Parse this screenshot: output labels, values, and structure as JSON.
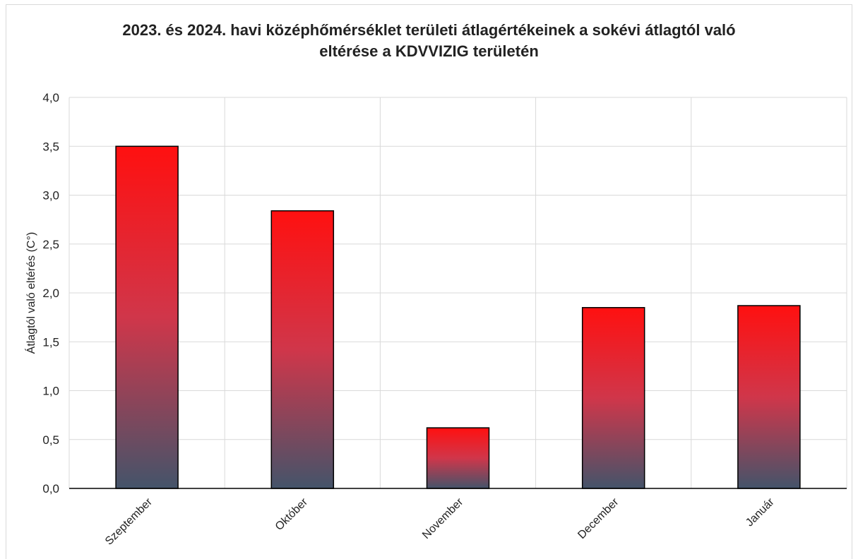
{
  "chart_data": {
    "type": "bar",
    "title_line1": "2023. és 2024. havi középhőmérséklet területi átlagértékeinek  a sokévi átlagtól való",
    "title_line2": "eltérése a KDVVIZIG területén",
    "xlabel": "",
    "ylabel": "Átlagtól való eltérés (C°)",
    "categories": [
      "Szeptember",
      "Október",
      "November",
      "December",
      "Január"
    ],
    "values": [
      3.5,
      2.84,
      0.62,
      1.85,
      1.87
    ],
    "ylim": [
      0,
      4
    ],
    "yticks": [
      "0,0",
      "0,5",
      "1,0",
      "1,5",
      "2,0",
      "2,5",
      "3,0",
      "3,5",
      "4,0"
    ],
    "grid": true,
    "legend": "none",
    "colors": {
      "bar_top": "#ff1010",
      "bar_mid": "#d0364a",
      "bar_bottom": "#44546a",
      "bar_border": "#000000"
    }
  }
}
